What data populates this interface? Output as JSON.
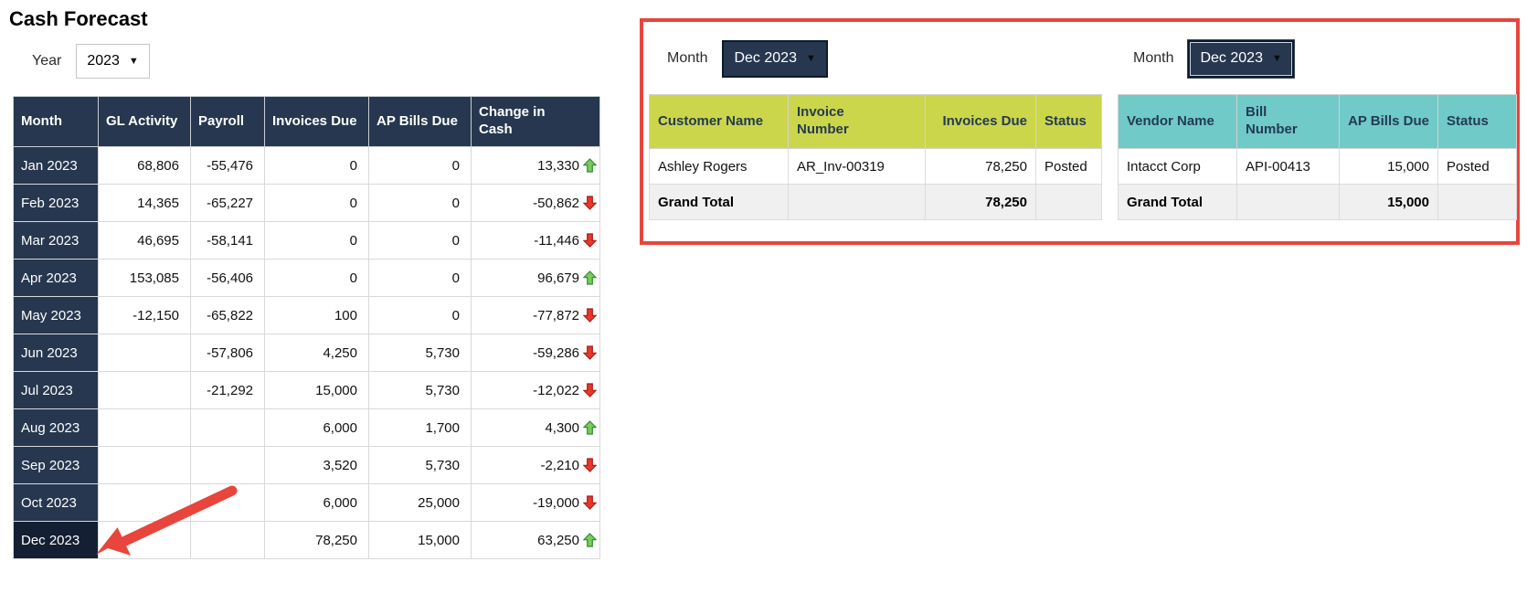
{
  "title": "Cash Forecast",
  "filters": {
    "year": {
      "label": "Year",
      "value": "2023"
    },
    "customer_month": {
      "label": "Month",
      "value": "Dec 2023"
    },
    "vendor_month": {
      "label": "Month",
      "value": "Dec 2023"
    }
  },
  "forecast_table": {
    "columns": [
      "Month",
      "GL Activity",
      "Payroll",
      "Invoices Due",
      "AP Bills Due",
      "Change in\nCash"
    ],
    "rows": [
      {
        "month": "Jan 2023",
        "gl_activity": "68,806",
        "payroll": "-55,476",
        "invoices_due": "0",
        "ap_bills_due": "0",
        "change_in_cash": "13,330",
        "trend": "up",
        "highlight": false
      },
      {
        "month": "Feb 2023",
        "gl_activity": "14,365",
        "payroll": "-65,227",
        "invoices_due": "0",
        "ap_bills_due": "0",
        "change_in_cash": "-50,862",
        "trend": "down",
        "highlight": false
      },
      {
        "month": "Mar 2023",
        "gl_activity": "46,695",
        "payroll": "-58,141",
        "invoices_due": "0",
        "ap_bills_due": "0",
        "change_in_cash": "-11,446",
        "trend": "down",
        "highlight": false
      },
      {
        "month": "Apr 2023",
        "gl_activity": "153,085",
        "payroll": "-56,406",
        "invoices_due": "0",
        "ap_bills_due": "0",
        "change_in_cash": "96,679",
        "trend": "up",
        "highlight": false
      },
      {
        "month": "May 2023",
        "gl_activity": "-12,150",
        "payroll": "-65,822",
        "invoices_due": "100",
        "ap_bills_due": "0",
        "change_in_cash": "-77,872",
        "trend": "down",
        "highlight": false
      },
      {
        "month": "Jun 2023",
        "gl_activity": "",
        "payroll": "-57,806",
        "invoices_due": "4,250",
        "ap_bills_due": "5,730",
        "change_in_cash": "-59,286",
        "trend": "down",
        "highlight": false
      },
      {
        "month": "Jul 2023",
        "gl_activity": "",
        "payroll": "-21,292",
        "invoices_due": "15,000",
        "ap_bills_due": "5,730",
        "change_in_cash": "-12,022",
        "trend": "down",
        "highlight": false
      },
      {
        "month": "Aug 2023",
        "gl_activity": "",
        "payroll": "",
        "invoices_due": "6,000",
        "ap_bills_due": "1,700",
        "change_in_cash": "4,300",
        "trend": "up",
        "highlight": false
      },
      {
        "month": "Sep 2023",
        "gl_activity": "",
        "payroll": "",
        "invoices_due": "3,520",
        "ap_bills_due": "5,730",
        "change_in_cash": "-2,210",
        "trend": "down",
        "highlight": false
      },
      {
        "month": "Oct 2023",
        "gl_activity": "",
        "payroll": "",
        "invoices_due": "6,000",
        "ap_bills_due": "25,000",
        "change_in_cash": "-19,000",
        "trend": "down",
        "highlight": false
      },
      {
        "month": "Dec 2023",
        "gl_activity": "",
        "payroll": "",
        "invoices_due": "78,250",
        "ap_bills_due": "15,000",
        "change_in_cash": "63,250",
        "trend": "up",
        "highlight": true
      }
    ]
  },
  "customer_table": {
    "columns": [
      "Customer Name",
      "Invoice\nNumber",
      "Invoices Due",
      "Status"
    ],
    "rows": [
      {
        "customer_name": "Ashley Rogers",
        "invoice_number": "AR_Inv-00319",
        "invoices_due": "78,250",
        "status": "Posted"
      }
    ],
    "grand_total": {
      "label": "Grand Total",
      "invoices_due": "78,250"
    }
  },
  "vendor_table": {
    "columns": [
      "Vendor Name",
      "Bill\nNumber",
      "AP Bills Due",
      "Status"
    ],
    "rows": [
      {
        "vendor_name": "Intacct Corp",
        "bill_number": "API-00413",
        "ap_bills_due": "15,000",
        "status": "Posted"
      }
    ],
    "grand_total": {
      "label": "Grand Total",
      "ap_bills_due": "15,000"
    }
  },
  "annotations": {
    "highlighted_month": "Dec 2023"
  },
  "colors": {
    "navy": "#26374f",
    "navy_dark": "#141f33",
    "header_yellow": "#ccd64a",
    "header_teal": "#70cac7",
    "annotation_red": "#e8453c",
    "trend_up_green": "#7cc95e",
    "trend_down_red": "#e8382b",
    "grand_total_gray": "#f0f0f0"
  }
}
